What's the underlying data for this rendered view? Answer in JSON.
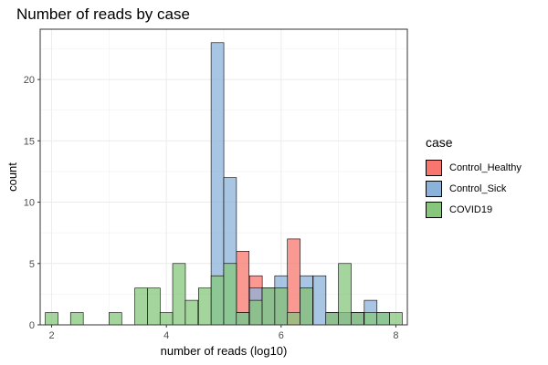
{
  "chart_data": {
    "type": "histogram",
    "title": "Number of reads by case",
    "xlabel": "number of reads (log10)",
    "ylabel": "count",
    "xlim": [
      1.8,
      8.2
    ],
    "ylim": [
      0,
      24.1
    ],
    "xticks": [
      2,
      4,
      6,
      8
    ],
    "yticks": [
      0,
      5,
      10,
      15,
      20
    ],
    "bin_width": 0.222,
    "legend_title": "case",
    "legend_position": "right",
    "grid": true,
    "series": [
      {
        "name": "Control_Healthy",
        "color": "#F8766D",
        "bins": [
          {
            "x": 5.33,
            "count": 6
          },
          {
            "x": 5.56,
            "count": 4
          },
          {
            "x": 5.78,
            "count": 3
          },
          {
            "x": 6.0,
            "count": 3
          },
          {
            "x": 6.22,
            "count": 7
          },
          {
            "x": 6.44,
            "count": 3
          },
          {
            "x": 6.89,
            "count": 1
          },
          {
            "x": 7.11,
            "count": 1
          },
          {
            "x": 7.33,
            "count": 1
          }
        ]
      },
      {
        "name": "Control_Sick",
        "color": "#8BB3DA",
        "bins": [
          {
            "x": 4.89,
            "count": 23
          },
          {
            "x": 5.11,
            "count": 12
          },
          {
            "x": 5.33,
            "count": 1
          },
          {
            "x": 5.56,
            "count": 3
          },
          {
            "x": 5.78,
            "count": 3
          },
          {
            "x": 6.0,
            "count": 4
          },
          {
            "x": 6.44,
            "count": 4
          },
          {
            "x": 6.67,
            "count": 4
          },
          {
            "x": 6.89,
            "count": 1
          },
          {
            "x": 7.11,
            "count": 1
          },
          {
            "x": 7.33,
            "count": 1
          },
          {
            "x": 7.56,
            "count": 2
          },
          {
            "x": 7.78,
            "count": 1
          }
        ]
      },
      {
        "name": "COVID19",
        "color": "#86C77C",
        "bins": [
          {
            "x": 2.0,
            "count": 1
          },
          {
            "x": 2.44,
            "count": 1
          },
          {
            "x": 3.11,
            "count": 1
          },
          {
            "x": 3.56,
            "count": 3
          },
          {
            "x": 3.78,
            "count": 3
          },
          {
            "x": 4.0,
            "count": 1
          },
          {
            "x": 4.22,
            "count": 5
          },
          {
            "x": 4.44,
            "count": 2
          },
          {
            "x": 4.67,
            "count": 3
          },
          {
            "x": 4.89,
            "count": 4
          },
          {
            "x": 5.11,
            "count": 5
          },
          {
            "x": 5.33,
            "count": 1
          },
          {
            "x": 5.56,
            "count": 2
          },
          {
            "x": 5.78,
            "count": 3
          },
          {
            "x": 6.0,
            "count": 3
          },
          {
            "x": 6.22,
            "count": 1
          },
          {
            "x": 6.44,
            "count": 3
          },
          {
            "x": 6.89,
            "count": 1
          },
          {
            "x": 7.11,
            "count": 5
          },
          {
            "x": 7.33,
            "count": 1
          },
          {
            "x": 7.56,
            "count": 1
          },
          {
            "x": 7.78,
            "count": 1
          },
          {
            "x": 8.0,
            "count": 1
          }
        ]
      }
    ]
  }
}
